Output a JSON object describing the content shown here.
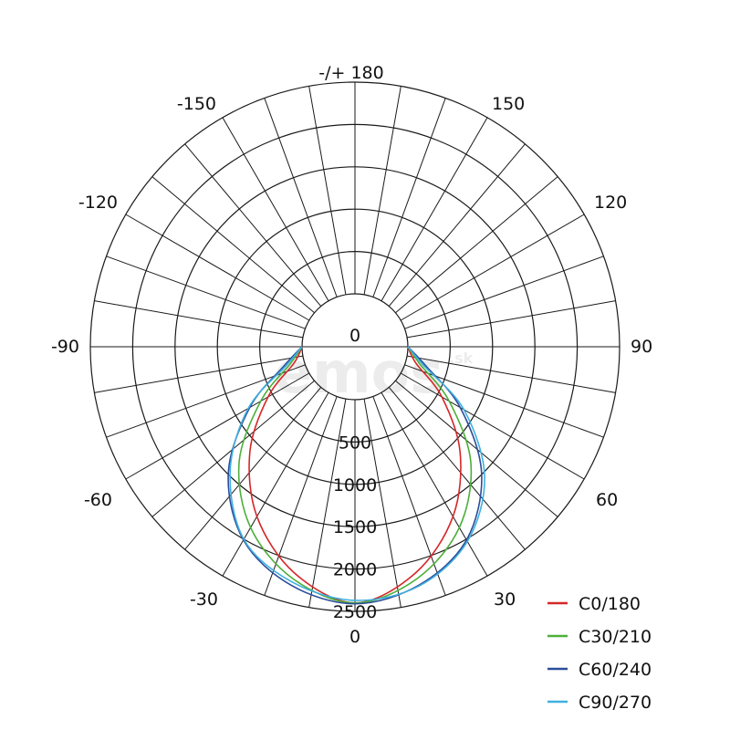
{
  "chart_data": {
    "type": "polar-line",
    "title": "",
    "angle_labels": [
      {
        "angle": 180,
        "text": "-/+ 180"
      },
      {
        "angle": 150,
        "text": "150"
      },
      {
        "angle": -150,
        "text": "-150"
      },
      {
        "angle": 120,
        "text": "120"
      },
      {
        "angle": -120,
        "text": "-120"
      },
      {
        "angle": 90,
        "text": "90"
      },
      {
        "angle": -90,
        "text": "-90"
      },
      {
        "angle": 60,
        "text": "60"
      },
      {
        "angle": -60,
        "text": "-60"
      },
      {
        "angle": 30,
        "text": "30"
      },
      {
        "angle": -30,
        "text": "-30"
      },
      {
        "angle": 0,
        "text": "0"
      }
    ],
    "radial_ticks": [
      0,
      500,
      1000,
      1500,
      2000,
      2500
    ],
    "radial_tick_labels": [
      "0",
      "500",
      "1000",
      "1500",
      "2000",
      "2500"
    ],
    "r_max": 2500,
    "angular_grid_step": 10,
    "center_hole": true,
    "legend_position": "bottom-right",
    "series": [
      {
        "name": "C0/180",
        "color": "#d62728",
        "angles": [
          -90,
          -75,
          -60,
          -45,
          -30,
          -15,
          0,
          15,
          30,
          45,
          60,
          75,
          90
        ],
        "values": [
          0,
          120,
          560,
          1130,
          1690,
          2140,
          2400,
          2140,
          1690,
          1130,
          560,
          120,
          0
        ]
      },
      {
        "name": "C30/210",
        "color": "#4daf3a",
        "angles": [
          -90,
          -75,
          -60,
          -45,
          -30,
          -15,
          0,
          15,
          30,
          45,
          60,
          75,
          90
        ],
        "values": [
          0,
          170,
          660,
          1310,
          1840,
          2210,
          2400,
          2210,
          1840,
          1310,
          660,
          170,
          0
        ]
      },
      {
        "name": "C60/240",
        "color": "#2b4d9a",
        "angles": [
          -90,
          -75,
          -60,
          -45,
          -30,
          -15,
          0,
          15,
          30,
          45,
          60,
          75,
          90
        ],
        "values": [
          0,
          240,
          810,
          1490,
          2010,
          2290,
          2410,
          2290,
          2010,
          1490,
          810,
          240,
          0
        ]
      },
      {
        "name": "C90/270",
        "color": "#3fb0e0",
        "angles": [
          -90,
          -75,
          -60,
          -45,
          -30,
          -15,
          0,
          15,
          30,
          45,
          60,
          75,
          90
        ],
        "values": [
          0,
          210,
          830,
          1460,
          2000,
          2250,
          2370,
          2300,
          2030,
          1540,
          860,
          210,
          0
        ]
      }
    ]
  },
  "watermark": {
    "text": "emos",
    "suffix": ".sk"
  }
}
